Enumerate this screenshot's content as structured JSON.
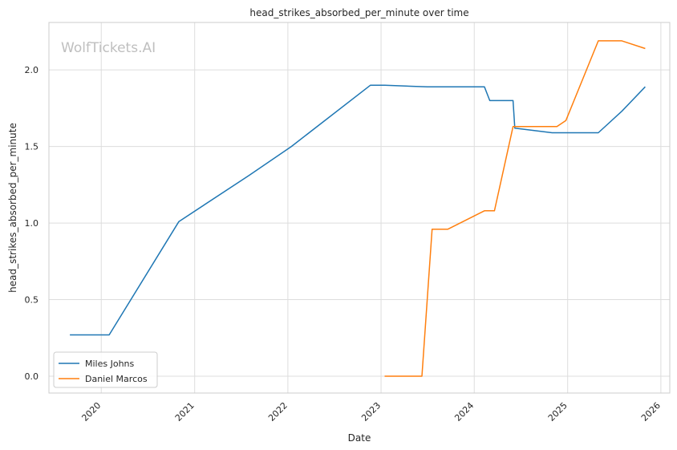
{
  "chart_data": {
    "type": "line",
    "title": "head_strikes_absorbed_per_minute over time",
    "xlabel": "Date",
    "ylabel": "head_strikes_absorbed_per_minute",
    "watermark": "WolfTickets.AI",
    "xlim": [
      "2019-06-10",
      "2026-02-05"
    ],
    "ylim": [
      -0.11,
      2.31
    ],
    "x_ticks": [
      "2020",
      "2021",
      "2022",
      "2023",
      "2024",
      "2025",
      "2026"
    ],
    "y_ticks": [
      "0.0",
      "0.5",
      "1.0",
      "1.5",
      "2.0"
    ],
    "grid": true,
    "legend_position": "lower-left",
    "series": [
      {
        "name": "Miles Johns",
        "color": "#1f77b4",
        "points": [
          [
            "2019-08-31",
            0.27
          ],
          [
            "2020-02-01",
            0.27
          ],
          [
            "2020-10-31",
            1.01
          ],
          [
            "2021-08-01",
            1.31
          ],
          [
            "2022-01-15",
            1.5
          ],
          [
            "2022-11-20",
            1.9
          ],
          [
            "2023-01-15",
            1.9
          ],
          [
            "2023-07-01",
            1.89
          ],
          [
            "2024-02-10",
            1.89
          ],
          [
            "2024-03-02",
            1.8
          ],
          [
            "2024-06-01",
            1.8
          ],
          [
            "2024-06-08",
            1.62
          ],
          [
            "2024-11-01",
            1.59
          ],
          [
            "2025-05-01",
            1.59
          ],
          [
            "2025-08-01",
            1.73
          ],
          [
            "2025-11-01",
            1.89
          ]
        ]
      },
      {
        "name": "Daniel Marcos",
        "color": "#ff7f0e",
        "points": [
          [
            "2023-01-15",
            0.0
          ],
          [
            "2023-06-10",
            0.0
          ],
          [
            "2023-07-20",
            0.96
          ],
          [
            "2023-09-20",
            0.96
          ],
          [
            "2024-02-10",
            1.08
          ],
          [
            "2024-03-20",
            1.08
          ],
          [
            "2024-06-01",
            1.63
          ],
          [
            "2024-11-20",
            1.63
          ],
          [
            "2024-12-25",
            1.67
          ],
          [
            "2025-05-01",
            2.19
          ],
          [
            "2025-08-01",
            2.19
          ],
          [
            "2025-11-01",
            2.14
          ]
        ]
      }
    ]
  }
}
